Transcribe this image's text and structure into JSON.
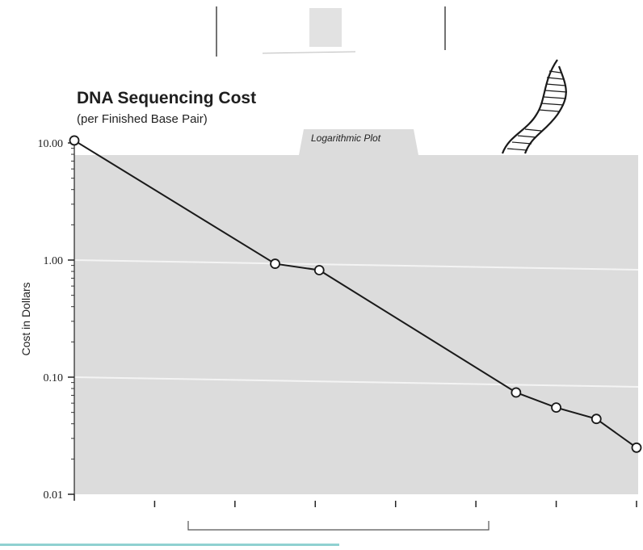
{
  "chart_data": {
    "type": "line",
    "title": "DNA Sequencing Cost",
    "subtitle": "(per Finished Base Pair)",
    "annotation": "Logarithmic Plot",
    "xlabel": "",
    "ylabel": "Cost in Dollars",
    "y_scale": "log",
    "ylim": [
      0.01,
      10
    ],
    "ytick_labels": [
      "10.00",
      "1.00",
      "0.10",
      "0.01"
    ],
    "ytick_values": [
      10,
      1,
      0.1,
      0.01
    ],
    "xlim": [
      0,
      7
    ],
    "xtick_values": [
      1,
      2,
      3,
      4,
      5,
      6,
      7
    ],
    "grid": "horizontal lines at 1.00 and 0.10",
    "series": [
      {
        "x": [
          0,
          2.5,
          3.05,
          5.5,
          6.0,
          6.5,
          7.0
        ],
        "values": [
          10.5,
          0.93,
          0.82,
          0.074,
          0.055,
          0.044,
          0.025
        ],
        "color": "#1a1a1a",
        "marker": "open-circle"
      }
    ]
  },
  "colors": {
    "plot_background": "#dcdcdc",
    "line": "#1a1a1a",
    "marker_fill": "#ffffff",
    "gridline": "#f4f4f4",
    "helix_hatch": "#1a1a1a"
  }
}
